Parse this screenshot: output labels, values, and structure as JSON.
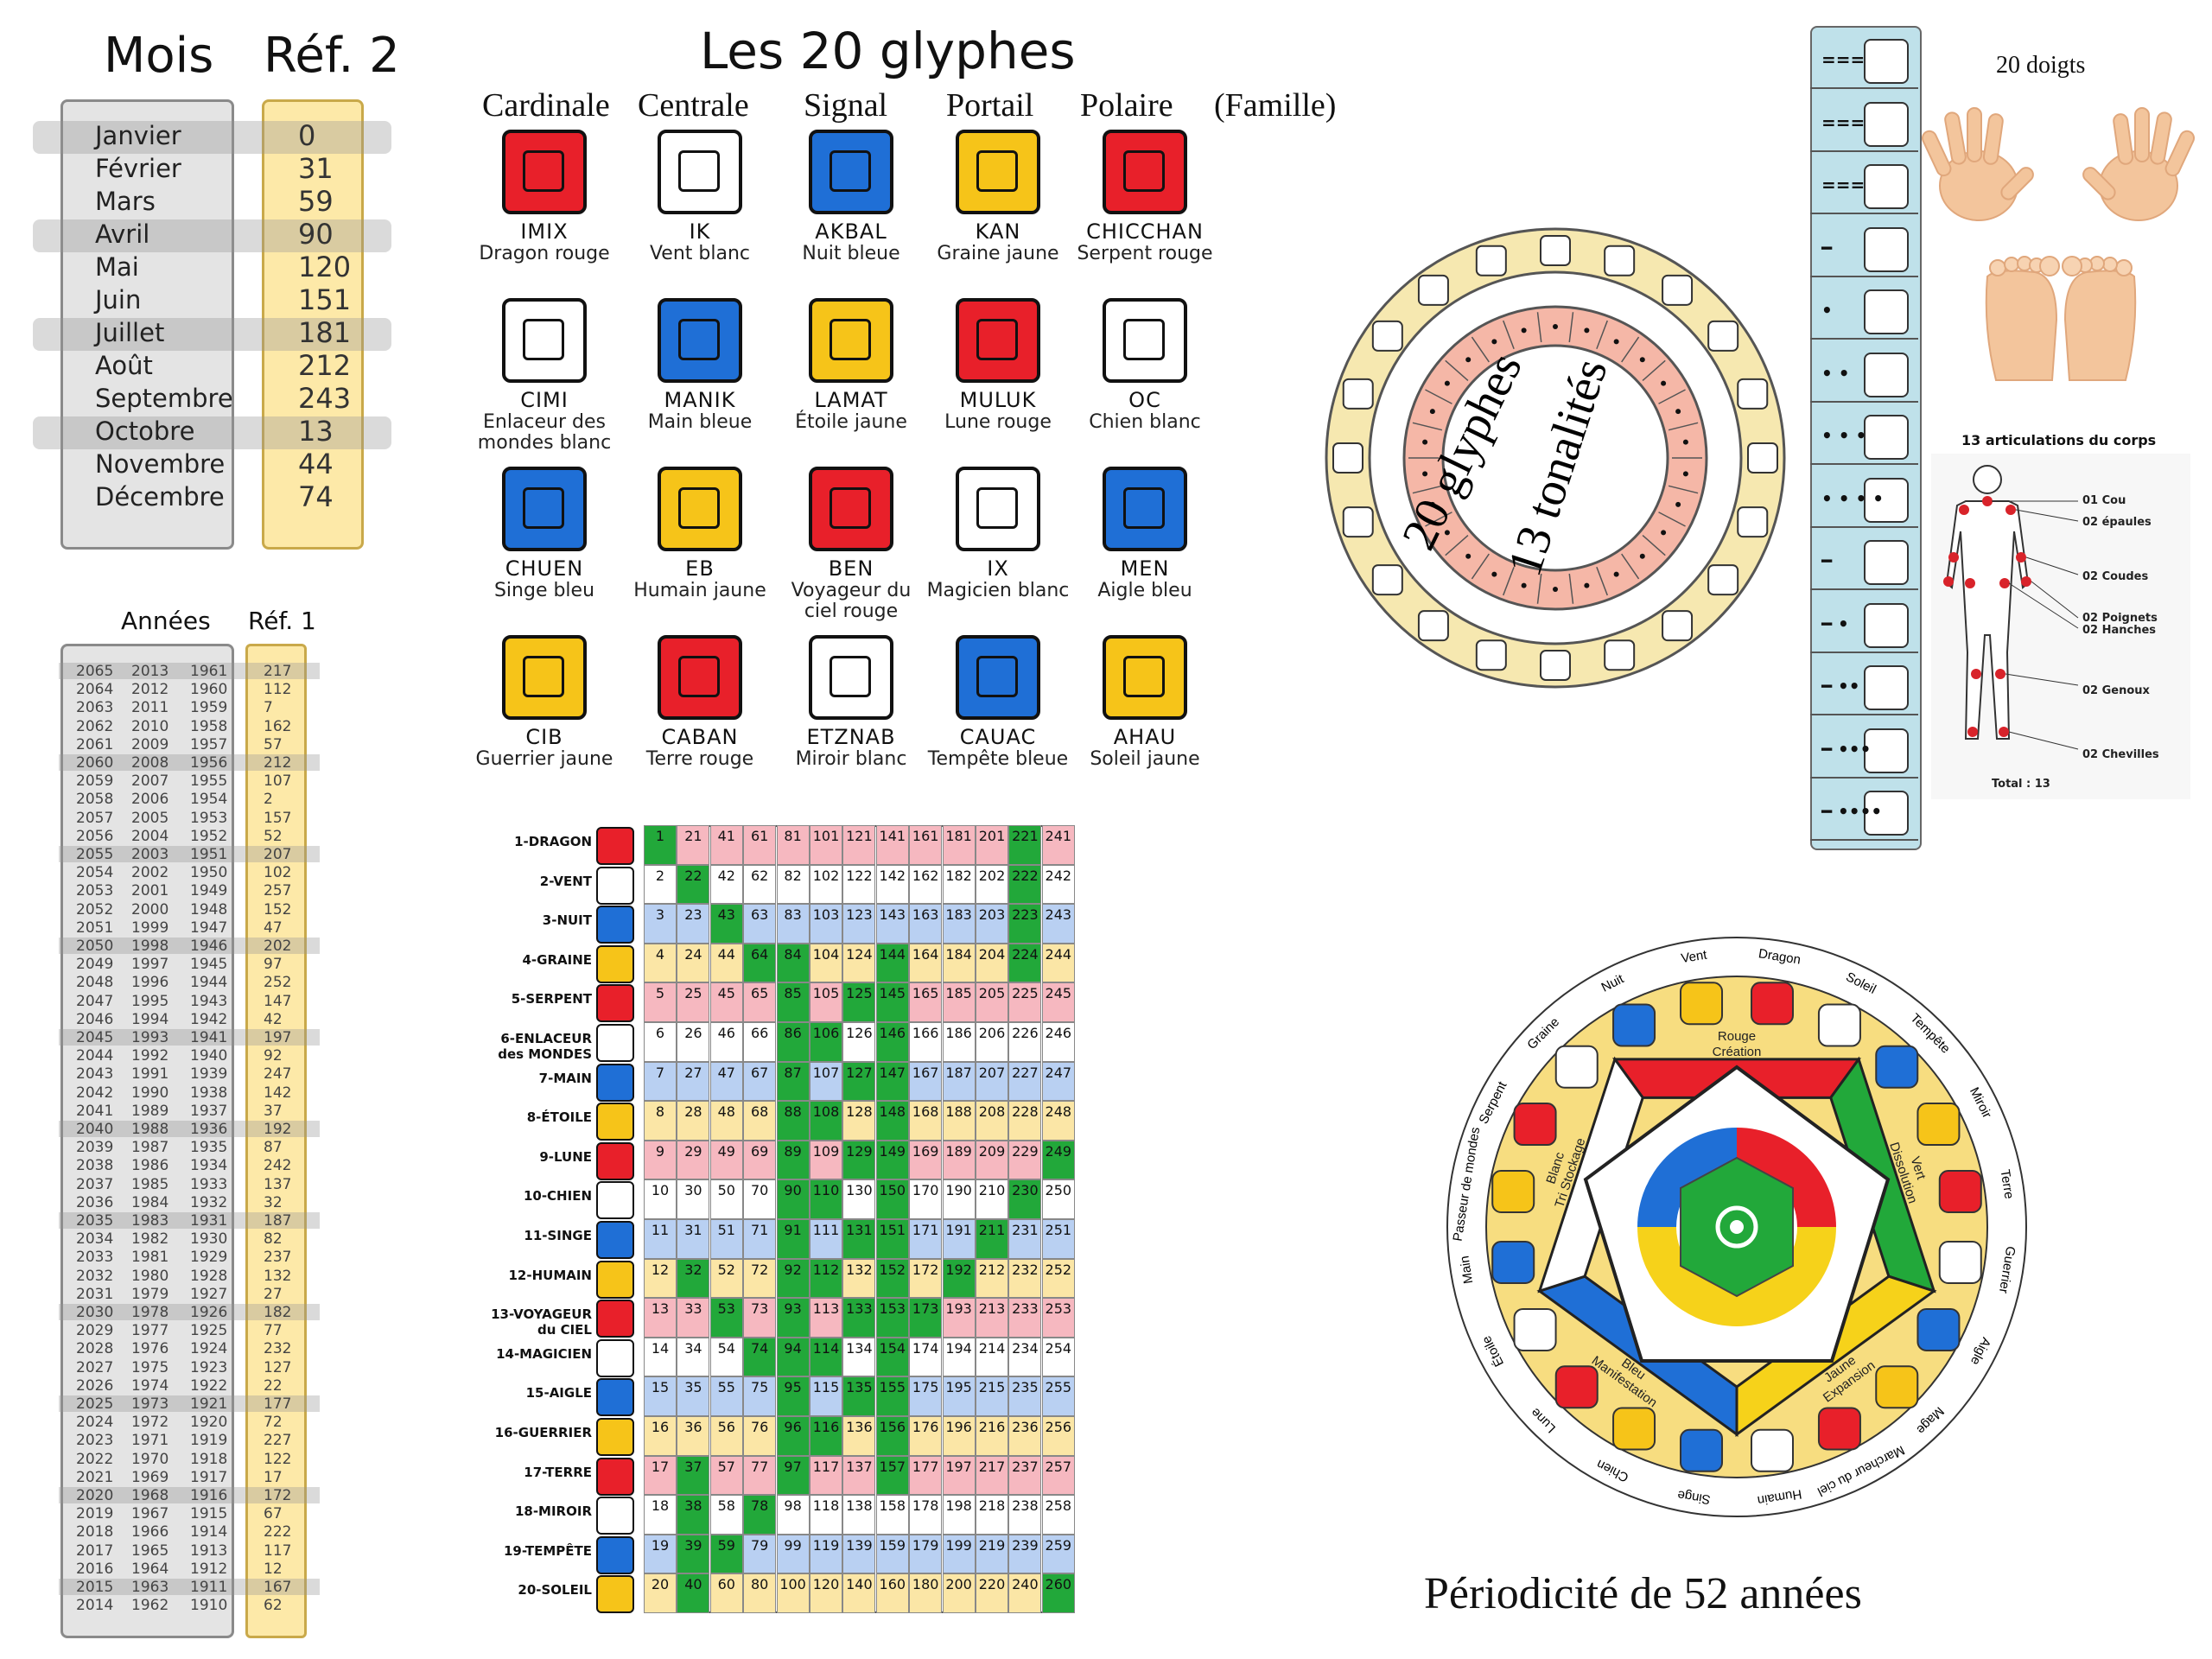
{
  "months": {
    "title": "Mois",
    "ref_title": "Réf. 2",
    "rows": [
      {
        "name": "Janvier",
        "ref": "0"
      },
      {
        "name": "Février",
        "ref": "31"
      },
      {
        "name": "Mars",
        "ref": "59"
      },
      {
        "name": "Avril",
        "ref": "90"
      },
      {
        "name": "Mai",
        "ref": "120"
      },
      {
        "name": "Juin",
        "ref": "151"
      },
      {
        "name": "Juillet",
        "ref": "181"
      },
      {
        "name": "Août",
        "ref": "212"
      },
      {
        "name": "Septembre",
        "ref": "243"
      },
      {
        "name": "Octobre",
        "ref": "13"
      },
      {
        "name": "Novembre",
        "ref": "44"
      },
      {
        "name": "Décembre",
        "ref": "74"
      }
    ]
  },
  "years": {
    "title": "Années",
    "ref_title": "Réf. 1",
    "rows": [
      [
        "2065",
        "2013",
        "1961",
        "217"
      ],
      [
        "2064",
        "2012",
        "1960",
        "112"
      ],
      [
        "2063",
        "2011",
        "1959",
        "7"
      ],
      [
        "2062",
        "2010",
        "1958",
        "162"
      ],
      [
        "2061",
        "2009",
        "1957",
        "57"
      ],
      [
        "2060",
        "2008",
        "1956",
        "212"
      ],
      [
        "2059",
        "2007",
        "1955",
        "107"
      ],
      [
        "2058",
        "2006",
        "1954",
        "2"
      ],
      [
        "2057",
        "2005",
        "1953",
        "157"
      ],
      [
        "2056",
        "2004",
        "1952",
        "52"
      ],
      [
        "2055",
        "2003",
        "1951",
        "207"
      ],
      [
        "2054",
        "2002",
        "1950",
        "102"
      ],
      [
        "2053",
        "2001",
        "1949",
        "257"
      ],
      [
        "2052",
        "2000",
        "1948",
        "152"
      ],
      [
        "2051",
        "1999",
        "1947",
        "47"
      ],
      [
        "2050",
        "1998",
        "1946",
        "202"
      ],
      [
        "2049",
        "1997",
        "1945",
        "97"
      ],
      [
        "2048",
        "1996",
        "1944",
        "252"
      ],
      [
        "2047",
        "1995",
        "1943",
        "147"
      ],
      [
        "2046",
        "1994",
        "1942",
        "42"
      ],
      [
        "2045",
        "1993",
        "1941",
        "197"
      ],
      [
        "2044",
        "1992",
        "1940",
        "92"
      ],
      [
        "2043",
        "1991",
        "1939",
        "247"
      ],
      [
        "2042",
        "1990",
        "1938",
        "142"
      ],
      [
        "2041",
        "1989",
        "1937",
        "37"
      ],
      [
        "2040",
        "1988",
        "1936",
        "192"
      ],
      [
        "2039",
        "1987",
        "1935",
        "87"
      ],
      [
        "2038",
        "1986",
        "1934",
        "242"
      ],
      [
        "2037",
        "1985",
        "1933",
        "137"
      ],
      [
        "2036",
        "1984",
        "1932",
        "32"
      ],
      [
        "2035",
        "1983",
        "1931",
        "187"
      ],
      [
        "2034",
        "1982",
        "1930",
        "82"
      ],
      [
        "2033",
        "1981",
        "1929",
        "237"
      ],
      [
        "2032",
        "1980",
        "1928",
        "132"
      ],
      [
        "2031",
        "1979",
        "1927",
        "27"
      ],
      [
        "2030",
        "1978",
        "1926",
        "182"
      ],
      [
        "2029",
        "1977",
        "1925",
        "77"
      ],
      [
        "2028",
        "1976",
        "1924",
        "232"
      ],
      [
        "2027",
        "1975",
        "1923",
        "127"
      ],
      [
        "2026",
        "1974",
        "1922",
        "22"
      ],
      [
        "2025",
        "1973",
        "1921",
        "177"
      ],
      [
        "2024",
        "1972",
        "1920",
        "72"
      ],
      [
        "2023",
        "1971",
        "1919",
        "227"
      ],
      [
        "2022",
        "1970",
        "1918",
        "122"
      ],
      [
        "2021",
        "1969",
        "1917",
        "17"
      ],
      [
        "2020",
        "1968",
        "1916",
        "172"
      ],
      [
        "2019",
        "1967",
        "1915",
        "67"
      ],
      [
        "2018",
        "1966",
        "1914",
        "222"
      ],
      [
        "2017",
        "1965",
        "1913",
        "117"
      ],
      [
        "2016",
        "1964",
        "1912",
        "12"
      ],
      [
        "2015",
        "1963",
        "1911",
        "167"
      ],
      [
        "2014",
        "1962",
        "1910",
        "62"
      ]
    ]
  },
  "glyphs": {
    "title": "Les 20 glyphes",
    "families": [
      "Cardinale",
      "Centrale",
      "Signal",
      "Portail",
      "Polaire",
      "(Famille)"
    ],
    "items": [
      {
        "name": "IMIX",
        "desc": "Dragon rouge",
        "color": "#e8202a"
      },
      {
        "name": "IK",
        "desc": "Vent blanc",
        "color": "#ffffff"
      },
      {
        "name": "AKBAL",
        "desc": "Nuit bleue",
        "color": "#1f6fd6"
      },
      {
        "name": "KAN",
        "desc": "Graine jaune",
        "color": "#f6c419"
      },
      {
        "name": "CHICCHAN",
        "desc": "Serpent rouge",
        "color": "#e8202a"
      },
      {
        "name": "CIMI",
        "desc": "Enlaceur des mondes blanc",
        "color": "#ffffff"
      },
      {
        "name": "MANIK",
        "desc": "Main bleue",
        "color": "#1f6fd6"
      },
      {
        "name": "LAMAT",
        "desc": "Étoile jaune",
        "color": "#f6c419"
      },
      {
        "name": "MULUK",
        "desc": "Lune rouge",
        "color": "#e8202a"
      },
      {
        "name": "OC",
        "desc": "Chien blanc",
        "color": "#ffffff"
      },
      {
        "name": "CHUEN",
        "desc": "Singe bleu",
        "color": "#1f6fd6"
      },
      {
        "name": "EB",
        "desc": "Humain jaune",
        "color": "#f6c419"
      },
      {
        "name": "BEN",
        "desc": "Voyageur du ciel rouge",
        "color": "#e8202a"
      },
      {
        "name": "IX",
        "desc": "Magicien blanc",
        "color": "#ffffff"
      },
      {
        "name": "MEN",
        "desc": "Aigle bleu",
        "color": "#1f6fd6"
      },
      {
        "name": "CIB",
        "desc": "Guerrier jaune",
        "color": "#f6c419"
      },
      {
        "name": "CABAN",
        "desc": "Terre rouge",
        "color": "#e8202a"
      },
      {
        "name": "ETZNAB",
        "desc": "Miroir blanc",
        "color": "#ffffff"
      },
      {
        "name": "CAUAC",
        "desc": "Tempête bleue",
        "color": "#1f6fd6"
      },
      {
        "name": "AHAU",
        "desc": "Soleil jaune",
        "color": "#f6c419"
      }
    ]
  },
  "tzolkin": {
    "labels": [
      "1-DRAGON",
      "2-VENT",
      "3-NUIT",
      "4-GRAINE",
      "5-SERPENT",
      "6-ENLACEUR des MONDES",
      "7-MAIN",
      "8-ÉTOILE",
      "9-LUNE",
      "10-CHIEN",
      "11-SINGE",
      "12-HUMAIN",
      "13-VOYAGEUR du CIEL",
      "14-MAGICIEN",
      "15-AIGLE",
      "16-GUERRIER",
      "17-TERRE",
      "18-MIROIR",
      "19-TEMPÊTE",
      "20-SOLEIL"
    ],
    "row_colors": [
      "#f6b8c0",
      "#ffffff",
      "#b9d0f2",
      "#fbe6a6"
    ],
    "green": "#22a83a",
    "columns": 13,
    "rows": 20
  },
  "wheel": {
    "outer_label": "20 glyphes",
    "inner_label": "13 tonalités"
  },
  "hands": {
    "title": "20 doigts"
  },
  "body": {
    "title": "13 articulations du corps",
    "labels": [
      "01 Cou",
      "02 épaules",
      "02 Coudes",
      "02 Poignets",
      "02 Hanches",
      "02 Genoux",
      "02 Chevilles"
    ],
    "total": "Total : 13"
  },
  "pentagon": {
    "sections": [
      {
        "title": "Rouge",
        "subtitle": "Création",
        "color": "#e8202a"
      },
      {
        "title": "Vert",
        "subtitle": "Dissolution",
        "color": "#22a83a"
      },
      {
        "title": "Jaune",
        "subtitle": "Expansion",
        "color": "#f6d21a"
      },
      {
        "title": "Bleu",
        "subtitle": "Manifestation",
        "color": "#1f6fd6"
      },
      {
        "title": "Blanc",
        "subtitle": "Tri Stockage",
        "color": "#ffffff"
      }
    ],
    "ring_labels": [
      "Dragon",
      "Soleil",
      "Tempête",
      "Miroir",
      "Terre",
      "Guerrier",
      "Aigle",
      "Mage",
      "Marcheur du ciel",
      "Humain",
      "Singe",
      "Chien",
      "Lune",
      "Étoile",
      "Main",
      "Passeur de mondes",
      "Serpent",
      "Graine",
      "Nuit",
      "Vent"
    ],
    "caption": "Périodicité de 52 années"
  }
}
